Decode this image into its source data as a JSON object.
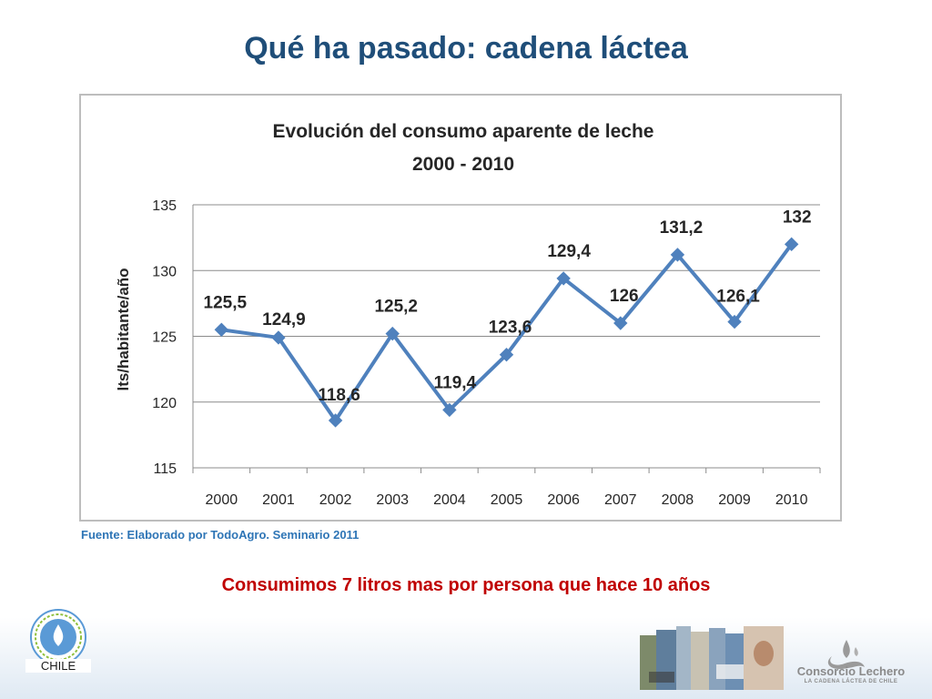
{
  "slide": {
    "title": "Qué ha pasado: cadena láctea",
    "source": "Fuente: Elaborado por TodoAgro. Seminario 2011",
    "conclusion": "Consumimos 7 litros mas por persona que hace 10 años"
  },
  "logos": {
    "fil_idf": {
      "country": "CHILE",
      "mark": "FIL IDF"
    },
    "consorcio": {
      "name": "Consorcio Lechero",
      "tagline": "LA CADENA LÁCTEA DE CHILE"
    }
  },
  "colors": {
    "title": "#1f4e79",
    "series": "#4f81bd",
    "source": "#2e75b6",
    "conclusion": "#c00000"
  },
  "chart_data": {
    "type": "line",
    "title": "Evolución del consumo aparente de leche",
    "subtitle": "2000 - 2010",
    "xlabel": "",
    "ylabel": "lts/habitante/año",
    "categories": [
      "2000",
      "2001",
      "2002",
      "2003",
      "2004",
      "2005",
      "2006",
      "2007",
      "2008",
      "2009",
      "2010"
    ],
    "series": [
      {
        "values": [
          125.5,
          124.9,
          118.6,
          125.2,
          119.4,
          123.6,
          129.4,
          126,
          131.2,
          126.1,
          132
        ],
        "labels": [
          "125,5",
          "124,9",
          "118,6",
          "125,2",
          "119,4",
          "123,6",
          "129,4",
          "126",
          "131,2",
          "126,1",
          "132"
        ]
      }
    ],
    "ylim": [
      115,
      135
    ],
    "yticks": [
      "115",
      "120",
      "125",
      "130",
      "135"
    ],
    "grid": true,
    "marker": "diamond",
    "legend": "none"
  }
}
